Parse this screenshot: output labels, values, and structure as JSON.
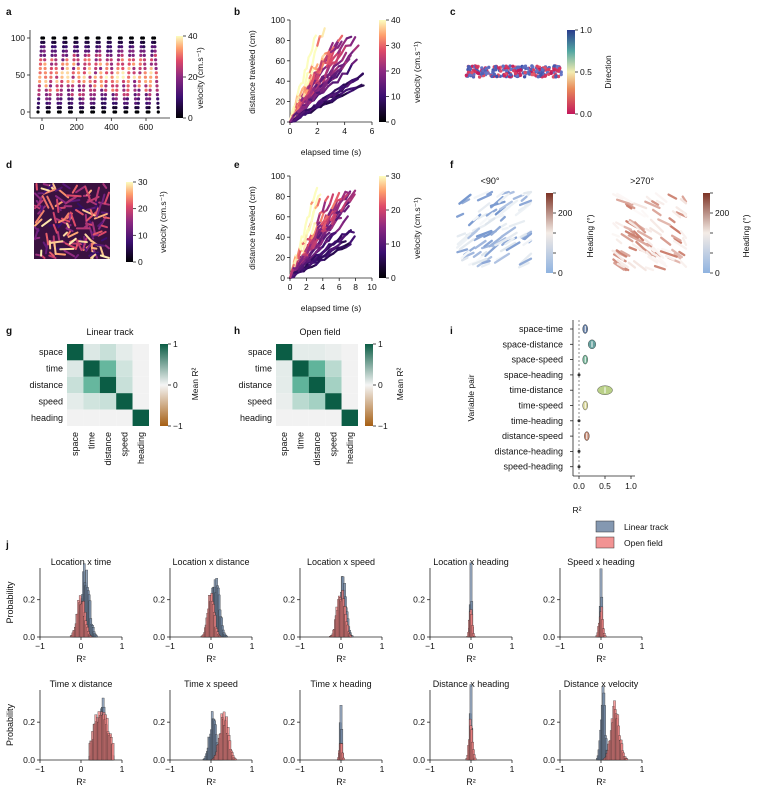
{
  "figure": {
    "panels": {
      "a": {
        "label": "a"
      },
      "b": {
        "label": "b"
      },
      "c": {
        "label": "c"
      },
      "d": {
        "label": "d"
      },
      "e": {
        "label": "e"
      },
      "f": {
        "label": "f"
      },
      "g": {
        "label": "g"
      },
      "h": {
        "label": "h"
      },
      "i": {
        "label": "i"
      },
      "j": {
        "label": "j"
      }
    }
  },
  "colors": {
    "linear_track": "#6f86a3",
    "open_field": "#f08080",
    "heat_dark": "#1b0c41",
    "heat_mid": "#b5367a",
    "heat_light": "#fcf5b0"
  },
  "chart_data": [
    {
      "id": "a",
      "type": "scatter",
      "title": "",
      "xlabel": "",
      "ylabel": "",
      "x_ticks": [
        "0",
        "200",
        "400",
        "600"
      ],
      "y_ticks": [
        "0",
        "50",
        "100"
      ],
      "xlim": [
        0,
        720
      ],
      "ylim": [
        0,
        100
      ],
      "colorbar": {
        "label": "velocity (cm.s⁻¹)",
        "ticks": [
          "0",
          "20",
          "40"
        ]
      },
      "description_series": "back-and-forth laps along a 100 cm linear track, colored by velocity"
    },
    {
      "id": "b",
      "type": "line",
      "xlabel": "elapsed time (s)",
      "ylabel": "distance traveled (cm)",
      "x_ticks": [
        "0",
        "2",
        "4",
        "6"
      ],
      "y_ticks": [
        "0",
        "20",
        "40",
        "60",
        "80",
        "100"
      ],
      "xlim": [
        0,
        6
      ],
      "ylim": [
        0,
        100
      ],
      "colorbar": {
        "label": "velocity (cm.s⁻¹)",
        "ticks": [
          "0",
          "10",
          "20",
          "30",
          "40"
        ]
      }
    },
    {
      "id": "c",
      "type": "scatter",
      "colorbar": {
        "label": "Direction",
        "ticks": [
          "0.0",
          "0.5",
          "1.0"
        ]
      }
    },
    {
      "id": "d",
      "type": "scatter",
      "colorbar": {
        "label": "velocity (cm.s⁻¹)",
        "ticks": [
          "0",
          "10",
          "20",
          "30"
        ]
      }
    },
    {
      "id": "e",
      "type": "line",
      "xlabel": "elapsed time (s)",
      "ylabel": "distance traveled (cm)",
      "x_ticks": [
        "0",
        "2",
        "4",
        "6",
        "8",
        "10"
      ],
      "y_ticks": [
        "0",
        "20",
        "40",
        "60",
        "80",
        "100"
      ],
      "xlim": [
        0,
        10
      ],
      "ylim": [
        0,
        100
      ],
      "colorbar": {
        "label": "velocity (cm.s⁻¹)",
        "ticks": [
          "0",
          "10",
          "20",
          "30"
        ]
      }
    },
    {
      "id": "f",
      "type": "scatter",
      "subtitles": [
        "<90°",
        ">270°"
      ],
      "colorbar": {
        "label": "Heading (°)",
        "ticks": [
          "0",
          "200"
        ]
      }
    },
    {
      "id": "g",
      "type": "heatmap",
      "title": "Linear track",
      "labels": [
        "space",
        "time",
        "distance",
        "speed",
        "heading"
      ],
      "matrix": [
        [
          1,
          0.08,
          0.15,
          0.05,
          0
        ],
        [
          0.08,
          1,
          0.5,
          0.12,
          0
        ],
        [
          0.15,
          0.5,
          1,
          0.15,
          0
        ],
        [
          0.05,
          0.12,
          0.15,
          1,
          0
        ],
        [
          0,
          0,
          0,
          0,
          1
        ]
      ],
      "colorbar": {
        "label": "Mean R²",
        "ticks": [
          "1",
          "0",
          "−1"
        ]
      }
    },
    {
      "id": "h",
      "type": "heatmap",
      "title": "Open field",
      "labels": [
        "space",
        "time",
        "distance",
        "speed",
        "heading"
      ],
      "matrix": [
        [
          1,
          0.05,
          0.05,
          0.03,
          0
        ],
        [
          0.05,
          1,
          0.52,
          0.2,
          0
        ],
        [
          0.05,
          0.52,
          1,
          0.28,
          0
        ],
        [
          0.03,
          0.2,
          0.28,
          1,
          0
        ],
        [
          0,
          0,
          0,
          0,
          1
        ]
      ],
      "colorbar": {
        "label": "Mean R²",
        "ticks": [
          "1",
          "0",
          "−1"
        ]
      }
    },
    {
      "id": "i",
      "type": "violin",
      "ylabel": "Variable pair",
      "xlabel": "R²",
      "x_ticks": [
        "0.0",
        "0.5",
        "1.0"
      ],
      "xlim": [
        -0.05,
        1.0
      ],
      "categories": [
        "space-time",
        "space-distance",
        "space-speed",
        "space-heading",
        "time-distance",
        "time-speed",
        "time-heading",
        "distance-speed",
        "distance-heading",
        "speed-heading"
      ],
      "values": [
        0.12,
        0.25,
        0.12,
        0.0,
        0.5,
        0.12,
        0.0,
        0.15,
        0.0,
        0.0
      ],
      "colors": [
        "#3b5b8c",
        "#3f8a86",
        "#4d9e7a",
        "#6b7a5a",
        "#a9c46a",
        "#c9c77a",
        "#b7a98a",
        "#b0674a",
        "#7a5a50",
        "#5a5a5a"
      ]
    },
    {
      "id": "j",
      "type": "histogram",
      "legend": [
        "Linear track",
        "Open field"
      ],
      "ylabel": "Probability",
      "xlabel": "R²",
      "x_ticks": [
        "−1",
        "0",
        "1"
      ],
      "y_ticks": [
        "0.0",
        "0.2"
      ],
      "xlim": [
        -1,
        1
      ],
      "ylim": [
        0,
        0.37
      ],
      "subplots": [
        {
          "title": "Location x time",
          "linear_center": 0.1,
          "linear_peak": 0.33,
          "linear_spread": 0.1,
          "open_center": 0.0,
          "open_peak": 0.22,
          "open_spread": 0.09
        },
        {
          "title": "Location x distance",
          "linear_center": 0.1,
          "linear_peak": 0.3,
          "linear_spread": 0.1,
          "open_center": 0.0,
          "open_peak": 0.22,
          "open_spread": 0.08
        },
        {
          "title": "Location x speed",
          "linear_center": 0.05,
          "linear_peak": 0.27,
          "linear_spread": 0.08,
          "open_center": 0.0,
          "open_peak": 0.25,
          "open_spread": 0.09
        },
        {
          "title": "Location x heading",
          "linear_center": 0.0,
          "linear_peak": 0.33,
          "linear_spread": 0.02,
          "open_center": 0.0,
          "open_peak": 0.18,
          "open_spread": 0.03
        },
        {
          "title": "Speed x heading",
          "linear_center": 0.0,
          "linear_peak": 0.33,
          "linear_spread": 0.02,
          "open_center": 0.0,
          "open_peak": 0.15,
          "open_spread": 0.04
        },
        {
          "title": "Time x distance",
          "linear_center": 0.5,
          "linear_peak": 0.28,
          "linear_spread": 0.12,
          "open_center": 0.5,
          "open_peak": 0.26,
          "open_spread": 0.18
        },
        {
          "title": "Time x speed",
          "linear_center": 0.05,
          "linear_peak": 0.22,
          "linear_spread": 0.08,
          "open_center": 0.32,
          "open_peak": 0.24,
          "open_spread": 0.1
        },
        {
          "title": "Time x heading",
          "linear_center": 0.0,
          "linear_peak": 0.33,
          "linear_spread": 0.02,
          "open_center": 0.0,
          "open_peak": 0.1,
          "open_spread": 0.03
        },
        {
          "title": "Distance x heading",
          "linear_center": 0.0,
          "linear_peak": 0.33,
          "linear_spread": 0.02,
          "open_center": 0.0,
          "open_peak": 0.2,
          "open_spread": 0.04
        },
        {
          "title": "Distance x velocity",
          "linear_center": 0.05,
          "linear_peak": 0.34,
          "linear_spread": 0.05,
          "open_center": 0.35,
          "open_peak": 0.26,
          "open_spread": 0.1
        }
      ]
    }
  ]
}
